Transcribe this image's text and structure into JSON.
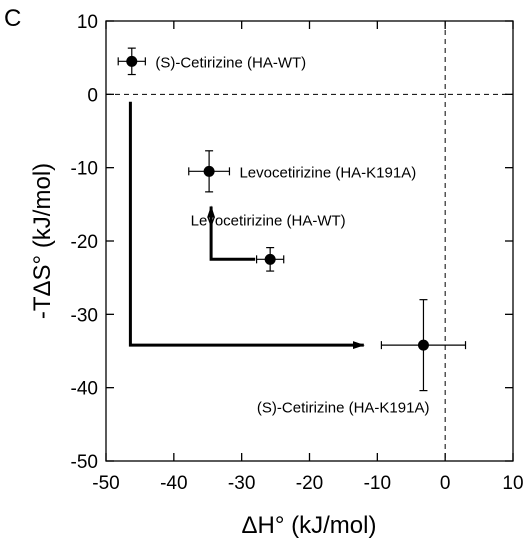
{
  "panel_label": "C",
  "chart_data": {
    "type": "scatter",
    "xlabel": "ΔH° (kJ/mol)",
    "ylabel": "-TΔS° (kJ/mol)",
    "xlim": [
      -50,
      10
    ],
    "ylim": [
      -50,
      10
    ],
    "x_ticks": [
      -50,
      -40,
      -30,
      -20,
      -10,
      0,
      10
    ],
    "y_ticks": [
      10,
      0,
      -10,
      -20,
      -30,
      -40,
      -50
    ],
    "reference_lines": [
      {
        "axis": "x",
        "value": 0,
        "style": "dashed"
      },
      {
        "axis": "y",
        "value": 0,
        "style": "dashed"
      }
    ],
    "points": [
      {
        "label": "(S)-Cetirizine (HA-WT)",
        "x": -46.2,
        "y": 4.5,
        "xerr": 2.0,
        "yerr": 1.8,
        "label_pos": "right"
      },
      {
        "label": "Levocetirizine (HA-K191A)",
        "x": -34.8,
        "y": -10.5,
        "xerr": 3.0,
        "yerr": 2.8,
        "label_pos": "right"
      },
      {
        "label": "Levocetirizine (HA-WT)",
        "x": -25.8,
        "y": -22.5,
        "xerr": 2.0,
        "yerr": 1.6,
        "label_pos": "above"
      },
      {
        "label": "(S)-Cetirizine (HA-K191A)",
        "x": -3.2,
        "y": -34.2,
        "xerr": 6.2,
        "yerr": 6.2,
        "label_pos": "below"
      }
    ],
    "arrows": [
      {
        "path": [
          [
            -46.4,
            -1.0
          ],
          [
            -46.4,
            -34.2
          ],
          [
            -12.0,
            -34.2
          ]
        ]
      },
      {
        "path": [
          [
            -28.0,
            -22.5
          ],
          [
            -34.5,
            -22.5
          ],
          [
            -34.5,
            -15.3
          ]
        ]
      }
    ],
    "grid": false,
    "legend": "none"
  }
}
